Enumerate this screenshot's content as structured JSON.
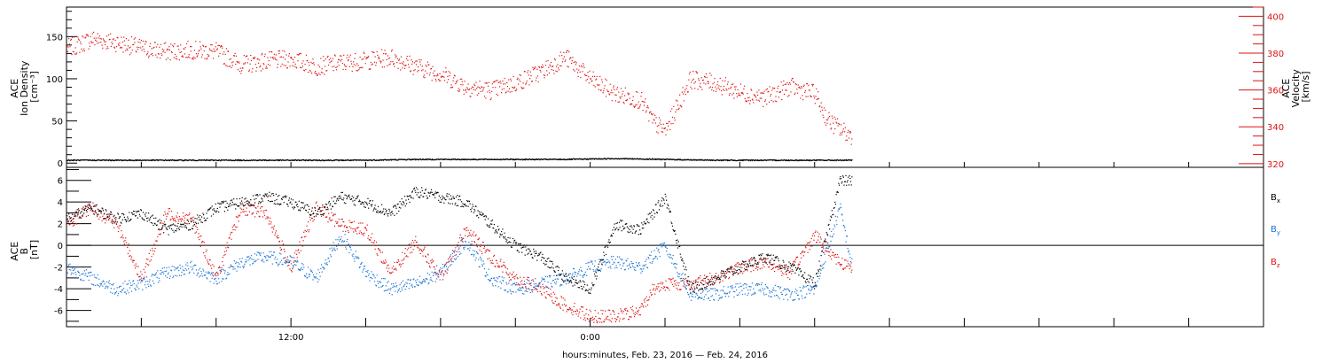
{
  "colors": {
    "ion_density": "#000000",
    "velocity": "#dd1111",
    "bx": "#000000",
    "by": "#1a73d4",
    "bz": "#dd1111"
  },
  "chart_data": [
    {
      "type": "scatter",
      "panel": "top",
      "left_axis_label": [
        "ACE",
        "Ion Density",
        "[cm⁻³]"
      ],
      "right_axis_label": [
        "ACE",
        "Velocity",
        "[km/s]"
      ],
      "left_ylim": [
        -5,
        185
      ],
      "left_yticks": [
        0,
        50,
        100,
        150
      ],
      "left_ytick_labels": [
        "0",
        "50",
        "100",
        "150"
      ],
      "right_ylim": [
        318,
        405
      ],
      "right_yticks": [
        320,
        340,
        360,
        380,
        400
      ],
      "right_ytick_labels": [
        "320",
        "340",
        "360",
        "380",
        "400"
      ],
      "series": [
        {
          "name": "Ion Density",
          "axis": "left",
          "color": "#000000",
          "x": [
            0.0,
            2.0,
            4.0,
            6.0,
            8.0,
            10.0,
            12.0,
            14.0,
            16.0,
            18.0,
            20.0,
            22.0,
            24.0,
            26.0,
            28.0,
            30.0,
            31.5
          ],
          "y": [
            4,
            4,
            4,
            4,
            4,
            4,
            4,
            5,
            5,
            5,
            5,
            6,
            5,
            4,
            4,
            4,
            4
          ]
        },
        {
          "name": "Velocity",
          "axis": "right",
          "color": "#dd1111",
          "x": [
            0.0,
            0.5,
            1.0,
            2.0,
            3.0,
            4.0,
            5.0,
            6.0,
            7.0,
            8.0,
            9.0,
            10.0,
            11.0,
            12.0,
            13.0,
            14.0,
            15.0,
            16.0,
            17.0,
            18.0,
            19.0,
            20.0,
            21.0,
            22.0,
            23.0,
            23.5,
            24.0,
            24.5,
            25.0,
            26.0,
            27.0,
            28.0,
            29.0,
            30.0,
            30.5,
            31.0,
            31.5
          ],
          "y": [
            383,
            385,
            388,
            386,
            383,
            381,
            382,
            381,
            374,
            376,
            377,
            373,
            375,
            376,
            378,
            373,
            369,
            362,
            360,
            364,
            370,
            378,
            366,
            358,
            355,
            343,
            338,
            352,
            366,
            364,
            359,
            356,
            362,
            358,
            344,
            339,
            335
          ]
        }
      ]
    },
    {
      "type": "scatter",
      "panel": "bottom",
      "axis_label": [
        "ACE",
        "B",
        "[nT]"
      ],
      "ylim": [
        -7.5,
        7.2
      ],
      "yticks": [
        -6,
        -4,
        -2,
        0,
        2,
        4,
        6
      ],
      "ytick_labels": [
        "-6",
        "-4",
        "-2",
        "0",
        "2",
        "4",
        "6"
      ],
      "legend": [
        "Bx",
        "By",
        "Bz"
      ],
      "legend_placement": "right",
      "series": [
        {
          "name": "Bx",
          "color": "#000000",
          "x": [
            0.0,
            1.0,
            2.0,
            3.0,
            4.0,
            5.0,
            6.0,
            7.0,
            8.0,
            9.0,
            10.0,
            11.0,
            12.0,
            13.0,
            14.0,
            15.0,
            16.0,
            17.0,
            18.0,
            19.0,
            20.0,
            21.0,
            22.0,
            23.0,
            24.0,
            25.0,
            26.0,
            27.0,
            28.0,
            29.0,
            30.0,
            31.0,
            31.5
          ],
          "y": [
            2.5,
            3.5,
            2.5,
            3.0,
            1.5,
            2.0,
            3.5,
            4.0,
            4.5,
            4.0,
            3.0,
            4.5,
            4.0,
            3.0,
            5.0,
            4.5,
            4.0,
            2.0,
            0.0,
            -1.0,
            -3.0,
            -4.0,
            2.0,
            1.5,
            4.5,
            -4.0,
            -3.0,
            -2.0,
            -1.0,
            -2.0,
            -3.5,
            6.0,
            6.0
          ]
        },
        {
          "name": "By",
          "color": "#1a73d4",
          "x": [
            0.0,
            1.0,
            2.0,
            3.0,
            4.0,
            5.0,
            6.0,
            7.0,
            8.0,
            9.0,
            10.0,
            11.0,
            12.0,
            13.0,
            14.0,
            15.0,
            16.0,
            17.0,
            18.0,
            19.0,
            20.0,
            21.0,
            22.0,
            23.0,
            24.0,
            25.0,
            26.0,
            27.0,
            28.0,
            29.0,
            30.0,
            31.0,
            31.5
          ],
          "y": [
            -2.0,
            -3.0,
            -4.0,
            -3.5,
            -2.5,
            -2.0,
            -3.0,
            -1.5,
            -1.0,
            -1.5,
            -3.0,
            1.0,
            -2.5,
            -4.0,
            -3.5,
            -2.5,
            0.5,
            -3.0,
            -4.0,
            -3.5,
            -3.0,
            -2.0,
            -1.5,
            -2.0,
            0.0,
            -4.5,
            -4.5,
            -4.0,
            -4.0,
            -4.5,
            -4.0,
            3.5,
            -2.0
          ]
        },
        {
          "name": "Bz",
          "color": "#dd1111",
          "x": [
            0.0,
            1.0,
            2.0,
            3.0,
            4.0,
            5.0,
            6.0,
            7.0,
            8.0,
            9.0,
            10.0,
            11.0,
            12.0,
            13.0,
            14.0,
            15.0,
            16.0,
            17.0,
            18.0,
            19.0,
            20.0,
            21.0,
            22.0,
            23.0,
            23.5,
            24.0,
            25.0,
            26.0,
            27.0,
            28.0,
            29.0,
            30.0,
            31.0,
            31.5
          ],
          "y": [
            2.0,
            3.5,
            2.0,
            -3.0,
            3.0,
            2.5,
            -3.0,
            3.5,
            3.0,
            -2.0,
            3.5,
            2.0,
            1.5,
            -2.5,
            0.5,
            -3.0,
            1.5,
            -1.0,
            -3.0,
            -4.0,
            -5.5,
            -6.5,
            -6.5,
            -6.0,
            -4.0,
            -3.5,
            -3.5,
            -3.0,
            -2.0,
            -1.5,
            -2.5,
            1.0,
            -1.5,
            -2.0
          ]
        }
      ]
    }
  ],
  "x_axis": {
    "xlim": [
      0,
      48
    ],
    "tick_labels": [
      {
        "hour": 9.0,
        "label": "12:00"
      },
      {
        "hour": 21.0,
        "label": "0:00"
      }
    ],
    "xlabel": "hours:minutes, Feb. 23, 2016 — Feb. 24, 2016"
  },
  "legend_labels": {
    "bx": {
      "main": "B",
      "sub": "x"
    },
    "by": {
      "main": "B",
      "sub": "y"
    },
    "bz": {
      "main": "B",
      "sub": "z"
    }
  }
}
